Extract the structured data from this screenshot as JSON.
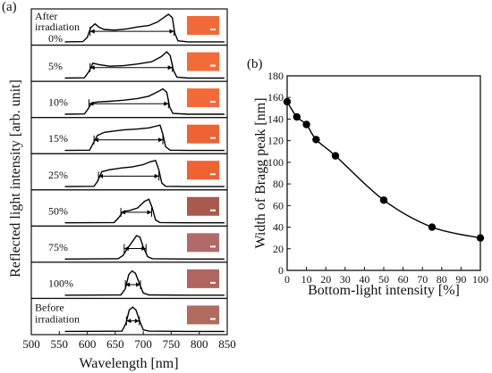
{
  "chart_data": [
    {
      "type": "line",
      "panel_label": "(a)",
      "xlabel": "Wavelength [nm]",
      "ylabel": "Reflected light intensity [arb. unit]",
      "xlim": [
        500,
        850
      ],
      "xticks": [
        500,
        550,
        600,
        650,
        700,
        750,
        800,
        850
      ],
      "grid": false,
      "series": [
        {
          "name": "0%",
          "label": "0%",
          "label_extra": [
            "After",
            "irradiation"
          ],
          "band": [
            605,
            755
          ],
          "swatch": "#f06a3a",
          "curve": [
            [
              560,
              0.02
            ],
            [
              592,
              0.03
            ],
            [
              600,
              0.18
            ],
            [
              606,
              0.52
            ],
            [
              614,
              0.66
            ],
            [
              620,
              0.55
            ],
            [
              630,
              0.46
            ],
            [
              650,
              0.44
            ],
            [
              670,
              0.48
            ],
            [
              690,
              0.55
            ],
            [
              710,
              0.6
            ],
            [
              725,
              0.72
            ],
            [
              735,
              0.86
            ],
            [
              745,
              1.0
            ],
            [
              752,
              0.88
            ],
            [
              756,
              0.35
            ],
            [
              762,
              0.06
            ],
            [
              780,
              0.02
            ],
            [
              845,
              0.02
            ]
          ]
        },
        {
          "name": "5%",
          "label": "5%",
          "band": [
            605,
            752
          ],
          "swatch": "#f26c3a",
          "curve": [
            [
              560,
              0.02
            ],
            [
              595,
              0.03
            ],
            [
              603,
              0.25
            ],
            [
              610,
              0.55
            ],
            [
              620,
              0.5
            ],
            [
              640,
              0.44
            ],
            [
              665,
              0.46
            ],
            [
              690,
              0.52
            ],
            [
              715,
              0.6
            ],
            [
              732,
              0.78
            ],
            [
              742,
              0.95
            ],
            [
              748,
              0.82
            ],
            [
              754,
              0.3
            ],
            [
              760,
              0.05
            ],
            [
              780,
              0.02
            ],
            [
              845,
              0.02
            ]
          ]
        },
        {
          "name": "10%",
          "label": "10%",
          "band": [
            603,
            745
          ],
          "swatch": "#f26a38",
          "curve": [
            [
              560,
              0.02
            ],
            [
              595,
              0.03
            ],
            [
              601,
              0.2
            ],
            [
              608,
              0.42
            ],
            [
              620,
              0.46
            ],
            [
              640,
              0.48
            ],
            [
              665,
              0.52
            ],
            [
              690,
              0.58
            ],
            [
              710,
              0.66
            ],
            [
              726,
              0.82
            ],
            [
              735,
              0.92
            ],
            [
              742,
              0.8
            ],
            [
              747,
              0.28
            ],
            [
              753,
              0.05
            ],
            [
              780,
              0.02
            ],
            [
              845,
              0.02
            ]
          ]
        },
        {
          "name": "15%",
          "label": "15%",
          "band": [
            612,
            735
          ],
          "swatch": "#ee6234",
          "curve": [
            [
              560,
              0.02
            ],
            [
              604,
              0.03
            ],
            [
              610,
              0.25
            ],
            [
              618,
              0.55
            ],
            [
              630,
              0.66
            ],
            [
              645,
              0.7
            ],
            [
              665,
              0.75
            ],
            [
              690,
              0.78
            ],
            [
              710,
              0.82
            ],
            [
              722,
              0.88
            ],
            [
              730,
              0.92
            ],
            [
              735,
              0.6
            ],
            [
              740,
              0.15
            ],
            [
              748,
              0.03
            ],
            [
              780,
              0.02
            ],
            [
              845,
              0.02
            ]
          ]
        },
        {
          "name": "25%",
          "label": "25%",
          "band": [
            620,
            728
          ],
          "swatch": "#f06232",
          "curve": [
            [
              560,
              0.02
            ],
            [
              612,
              0.03
            ],
            [
              618,
              0.2
            ],
            [
              626,
              0.55
            ],
            [
              640,
              0.62
            ],
            [
              660,
              0.68
            ],
            [
              680,
              0.72
            ],
            [
              700,
              0.8
            ],
            [
              712,
              0.9
            ],
            [
              722,
              0.95
            ],
            [
              728,
              0.6
            ],
            [
              733,
              0.15
            ],
            [
              740,
              0.03
            ],
            [
              780,
              0.02
            ],
            [
              845,
              0.02
            ]
          ]
        },
        {
          "name": "50%",
          "label": "50%",
          "band": [
            660,
            715
          ],
          "swatch": "#a85a4c",
          "curve": [
            [
              560,
              0.02
            ],
            [
              648,
              0.03
            ],
            [
              656,
              0.2
            ],
            [
              664,
              0.42
            ],
            [
              676,
              0.46
            ],
            [
              690,
              0.55
            ],
            [
              702,
              0.78
            ],
            [
              710,
              0.86
            ],
            [
              716,
              0.55
            ],
            [
              722,
              0.12
            ],
            [
              730,
              0.03
            ],
            [
              780,
              0.02
            ],
            [
              845,
              0.02
            ]
          ]
        },
        {
          "name": "75%",
          "label": "75%",
          "band": [
            666,
            705
          ],
          "swatch": "#b06a68",
          "curve": [
            [
              560,
              0.02
            ],
            [
              655,
              0.03
            ],
            [
              664,
              0.15
            ],
            [
              672,
              0.4
            ],
            [
              680,
              0.62
            ],
            [
              688,
              0.85
            ],
            [
              694,
              0.8
            ],
            [
              700,
              0.45
            ],
            [
              708,
              0.1
            ],
            [
              716,
              0.03
            ],
            [
              780,
              0.02
            ],
            [
              845,
              0.02
            ]
          ]
        },
        {
          "name": "100%",
          "label": "100%",
          "band": [
            668,
            695
          ],
          "swatch": "#b0665e",
          "curve": [
            [
              560,
              0.02
            ],
            [
              660,
              0.03
            ],
            [
              668,
              0.25
            ],
            [
              674,
              0.75
            ],
            [
              680,
              0.88
            ],
            [
              686,
              0.8
            ],
            [
              692,
              0.5
            ],
            [
              700,
              0.1
            ],
            [
              710,
              0.03
            ],
            [
              780,
              0.02
            ],
            [
              845,
              0.02
            ]
          ]
        },
        {
          "name": "Before irradiation",
          "label": "Before",
          "label_extra": [
            "irradiation"
          ],
          "band": [
            670,
            693
          ],
          "swatch": "#b06a5e",
          "curve": [
            [
              560,
              0.02
            ],
            [
              662,
              0.03
            ],
            [
              669,
              0.3
            ],
            [
              675,
              0.78
            ],
            [
              681,
              0.88
            ],
            [
              687,
              0.78
            ],
            [
              693,
              0.42
            ],
            [
              700,
              0.08
            ],
            [
              710,
              0.03
            ],
            [
              780,
              0.02
            ],
            [
              845,
              0.02
            ]
          ]
        }
      ]
    },
    {
      "type": "scatter",
      "panel_label": "(b)",
      "xlabel": "Bottom-light intensity [%]",
      "ylabel": "Width of Bragg peak [nm]",
      "xlim": [
        0,
        100
      ],
      "ylim": [
        0,
        180
      ],
      "xticks": [
        0,
        10,
        20,
        30,
        40,
        50,
        60,
        70,
        80,
        90,
        100
      ],
      "yticks": [
        0,
        20,
        40,
        60,
        80,
        100,
        120,
        140,
        160,
        180
      ],
      "grid": false,
      "fit_line": true,
      "series": [
        {
          "x": [
            0,
            5,
            10,
            15,
            25,
            50,
            75,
            100
          ],
          "y": [
            156,
            142,
            135,
            121,
            106,
            65,
            40,
            30
          ]
        }
      ]
    }
  ],
  "colors": {
    "ink": "#111111",
    "curve": "#000000"
  }
}
